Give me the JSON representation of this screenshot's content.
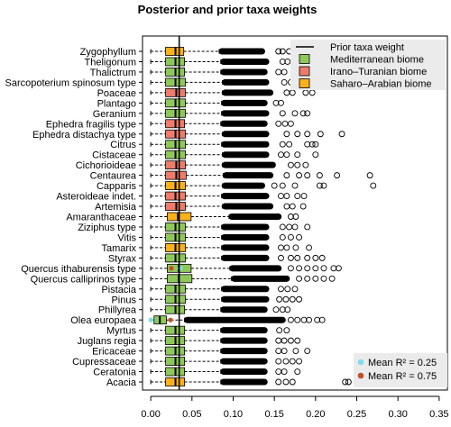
{
  "chart_data": {
    "type": "boxplot",
    "title": "Posterior and prior taxa weights",
    "xlim": [
      -0.01,
      0.36
    ],
    "xticks": [
      0.0,
      0.05,
      0.1,
      0.15,
      0.2,
      0.25,
      0.3,
      0.35
    ],
    "xtick_labels": [
      "0.00",
      "0.05",
      "0.10",
      "0.15",
      "0.20",
      "0.25",
      "0.30",
      "0.35"
    ],
    "prior_weight": 0.0345,
    "grid": false,
    "legend": {
      "placement": "top-right",
      "entries": [
        {
          "label": "Prior taxa weight",
          "kind": "line",
          "color": "#000000"
        },
        {
          "label": "Mediterranean biome",
          "kind": "box",
          "color": "#8fc85a"
        },
        {
          "label": "Irano–Turanian biome",
          "kind": "box",
          "color": "#ee7c6a"
        },
        {
          "label": "Saharo–Arabian biome",
          "kind": "box",
          "color": "#fbb11a"
        }
      ]
    },
    "mean_legend": {
      "placement": "bottom-right",
      "entries": [
        {
          "label": "Mean R² = 0.25",
          "color": "#80dfe8"
        },
        {
          "label": "Mean R² = 0.75",
          "color": "#c2502a"
        }
      ]
    },
    "colors": {
      "Mediterranean": "#8fc85a",
      "Irano-Turanian": "#ee7c6a",
      "Saharo-Arabian": "#fbb11a"
    },
    "taxa": [
      {
        "name": "Zygophyllum",
        "biome": "Saharo-Arabian",
        "q1": 0.018,
        "median": 0.03,
        "q3": 0.04,
        "wmin": 0.0,
        "wmax": 0.083,
        "out_to": 0.135,
        "far": [
          0.155,
          0.16,
          0.168
        ]
      },
      {
        "name": "Theligonum",
        "biome": "Mediterranean",
        "q1": 0.018,
        "median": 0.03,
        "q3": 0.041,
        "wmin": 0.0,
        "wmax": 0.085,
        "out_to": 0.14,
        "far": [
          0.16,
          0.166,
          0.178
        ]
      },
      {
        "name": "Thalictrum",
        "biome": "Mediterranean",
        "q1": 0.018,
        "median": 0.03,
        "q3": 0.041,
        "wmin": 0.0,
        "wmax": 0.085,
        "out_to": 0.138,
        "far": [
          0.155,
          0.162
        ]
      },
      {
        "name": "Sarcopoterium spinosum type",
        "biome": "Mediterranean",
        "q1": 0.018,
        "median": 0.03,
        "q3": 0.042,
        "wmin": 0.0,
        "wmax": 0.087,
        "out_to": 0.14,
        "far": [
          0.162,
          0.17,
          0.18
        ]
      },
      {
        "name": "Poaceae",
        "biome": "Irano-Turanian",
        "q1": 0.018,
        "median": 0.031,
        "q3": 0.042,
        "wmin": 0.0,
        "wmax": 0.087,
        "out_to": 0.145,
        "far": [
          0.165,
          0.172,
          0.188,
          0.196
        ]
      },
      {
        "name": "Plantago",
        "biome": "Mediterranean",
        "q1": 0.018,
        "median": 0.03,
        "q3": 0.042,
        "wmin": 0.0,
        "wmax": 0.086,
        "out_to": 0.138,
        "far": [
          0.152,
          0.158
        ]
      },
      {
        "name": "Geranium",
        "biome": "Mediterranean",
        "q1": 0.018,
        "median": 0.03,
        "q3": 0.042,
        "wmin": 0.0,
        "wmax": 0.086,
        "out_to": 0.14,
        "far": [
          0.16,
          0.175,
          0.185,
          0.19
        ]
      },
      {
        "name": "Ephedra fragilis type",
        "biome": "Irano-Turanian",
        "q1": 0.018,
        "median": 0.03,
        "q3": 0.041,
        "wmin": 0.0,
        "wmax": 0.085,
        "out_to": 0.138,
        "far": [
          0.155,
          0.163,
          0.17
        ]
      },
      {
        "name": "Ephedra distachya type",
        "biome": "Irano-Turanian",
        "q1": 0.018,
        "median": 0.03,
        "q3": 0.042,
        "wmin": 0.0,
        "wmax": 0.087,
        "out_to": 0.14,
        "far": [
          0.165,
          0.178,
          0.19,
          0.206,
          0.232
        ]
      },
      {
        "name": "Citrus",
        "biome": "Mediterranean",
        "q1": 0.018,
        "median": 0.03,
        "q3": 0.042,
        "wmin": 0.0,
        "wmax": 0.086,
        "out_to": 0.14,
        "far": [
          0.16,
          0.168,
          0.19,
          0.196,
          0.2
        ]
      },
      {
        "name": "Cistaceae",
        "biome": "Mediterranean",
        "q1": 0.018,
        "median": 0.03,
        "q3": 0.042,
        "wmin": 0.0,
        "wmax": 0.087,
        "out_to": 0.14,
        "far": [
          0.158,
          0.165,
          0.178,
          0.2
        ]
      },
      {
        "name": "Cichorioideae",
        "biome": "Irano-Turanian",
        "q1": 0.018,
        "median": 0.031,
        "q3": 0.042,
        "wmin": 0.0,
        "wmax": 0.087,
        "out_to": 0.148,
        "far": [
          0.17,
          0.178,
          0.188
        ]
      },
      {
        "name": "Centaurea",
        "biome": "Irano-Turanian",
        "q1": 0.018,
        "median": 0.031,
        "q3": 0.043,
        "wmin": 0.0,
        "wmax": 0.088,
        "out_to": 0.145,
        "far": [
          0.165,
          0.18,
          0.19,
          0.205,
          0.226,
          0.266
        ]
      },
      {
        "name": "Capparis",
        "biome": "Saharo-Arabian",
        "q1": 0.018,
        "median": 0.03,
        "q3": 0.042,
        "wmin": 0.0,
        "wmax": 0.087,
        "out_to": 0.135,
        "far": [
          0.15,
          0.16,
          0.175,
          0.205,
          0.21,
          0.27
        ]
      },
      {
        "name": "Asteroideae indet.",
        "biome": "Irano-Turanian",
        "q1": 0.018,
        "median": 0.03,
        "q3": 0.042,
        "wmin": 0.0,
        "wmax": 0.086,
        "out_to": 0.14,
        "far": [
          0.158,
          0.165,
          0.178,
          0.186
        ]
      },
      {
        "name": "Artemisia",
        "biome": "Irano-Turanian",
        "q1": 0.018,
        "median": 0.031,
        "q3": 0.042,
        "wmin": 0.0,
        "wmax": 0.087,
        "out_to": 0.145,
        "far": [
          0.165,
          0.172,
          0.185
        ]
      },
      {
        "name": "Amaranthaceae",
        "biome": "Saharo-Arabian",
        "q1": 0.02,
        "median": 0.033,
        "q3": 0.049,
        "wmin": 0.0,
        "wmax": 0.095,
        "out_to": 0.155,
        "far": [
          0.17,
          0.176
        ]
      },
      {
        "name": "Ziziphus type",
        "biome": "Mediterranean",
        "q1": 0.018,
        "median": 0.03,
        "q3": 0.042,
        "wmin": 0.0,
        "wmax": 0.086,
        "out_to": 0.14,
        "far": [
          0.16,
          0.168,
          0.175,
          0.19
        ]
      },
      {
        "name": "Vitis",
        "biome": "Mediterranean",
        "q1": 0.018,
        "median": 0.03,
        "q3": 0.042,
        "wmin": 0.0,
        "wmax": 0.086,
        "out_to": 0.14,
        "far": [
          0.16,
          0.17,
          0.18
        ]
      },
      {
        "name": "Tamarix",
        "biome": "Saharo-Arabian",
        "q1": 0.018,
        "median": 0.03,
        "q3": 0.042,
        "wmin": 0.0,
        "wmax": 0.086,
        "out_to": 0.14,
        "far": [
          0.158,
          0.165,
          0.176,
          0.192
        ]
      },
      {
        "name": "Styrax",
        "biome": "Mediterranean",
        "q1": 0.018,
        "median": 0.03,
        "q3": 0.042,
        "wmin": 0.0,
        "wmax": 0.086,
        "out_to": 0.14,
        "far": [
          0.158,
          0.17,
          0.178,
          0.19,
          0.2,
          0.208
        ]
      },
      {
        "name": "Quercus ithaburensis type",
        "biome": "Mediterranean",
        "q1": 0.02,
        "median": 0.034,
        "q3": 0.049,
        "wmin": 0.0,
        "wmax": 0.096,
        "out_to": 0.155,
        "far": [
          0.17,
          0.18,
          0.19,
          0.2,
          0.21,
          0.222,
          0.228
        ],
        "mean_025": 0.036,
        "mean_075": 0.025
      },
      {
        "name": "Quercus calliprinos type",
        "biome": "Mediterranean",
        "q1": 0.02,
        "median": 0.034,
        "q3": 0.05,
        "wmin": 0.0,
        "wmax": 0.098,
        "out_to": 0.165,
        "far": [
          0.18,
          0.19,
          0.2,
          0.21,
          0.22
        ]
      },
      {
        "name": "Pistacia",
        "biome": "Mediterranean",
        "q1": 0.018,
        "median": 0.03,
        "q3": 0.042,
        "wmin": 0.0,
        "wmax": 0.086,
        "out_to": 0.14,
        "far": [
          0.158,
          0.166,
          0.175
        ]
      },
      {
        "name": "Pinus",
        "biome": "Mediterranean",
        "q1": 0.018,
        "median": 0.03,
        "q3": 0.042,
        "wmin": 0.0,
        "wmax": 0.086,
        "out_to": 0.14,
        "far": [
          0.156,
          0.164,
          0.172,
          0.18
        ]
      },
      {
        "name": "Phillyrea",
        "biome": "Mediterranean",
        "q1": 0.018,
        "median": 0.03,
        "q3": 0.041,
        "wmin": 0.0,
        "wmax": 0.085,
        "out_to": 0.138,
        "far": [
          0.152,
          0.16,
          0.166
        ]
      },
      {
        "name": "Olea europaea",
        "biome": "Mediterranean",
        "q1": 0.004,
        "median": 0.011,
        "q3": 0.019,
        "wmin": 0.0,
        "wmax": 0.041,
        "out_to": 0.16,
        "far": [
          0.17,
          0.178,
          0.186,
          0.192,
          0.202,
          0.208
        ],
        "mean_025": 0.0,
        "mean_075": 0.024
      },
      {
        "name": "Myrtus",
        "biome": "Mediterranean",
        "q1": 0.018,
        "median": 0.03,
        "q3": 0.041,
        "wmin": 0.0,
        "wmax": 0.085,
        "out_to": 0.138,
        "far": [
          0.156,
          0.165
        ]
      },
      {
        "name": "Juglans regia",
        "biome": "Mediterranean",
        "q1": 0.018,
        "median": 0.03,
        "q3": 0.041,
        "wmin": 0.0,
        "wmax": 0.085,
        "out_to": 0.138,
        "far": [
          0.155,
          0.162,
          0.17,
          0.178
        ]
      },
      {
        "name": "Ericaceae",
        "biome": "Mediterranean",
        "q1": 0.018,
        "median": 0.03,
        "q3": 0.041,
        "wmin": 0.0,
        "wmax": 0.085,
        "out_to": 0.138,
        "far": [
          0.155,
          0.162,
          0.176,
          0.19
        ]
      },
      {
        "name": "Cupressaceae",
        "biome": "Mediterranean",
        "q1": 0.018,
        "median": 0.03,
        "q3": 0.041,
        "wmin": 0.0,
        "wmax": 0.085,
        "out_to": 0.138,
        "far": [
          0.155,
          0.164,
          0.172,
          0.18
        ]
      },
      {
        "name": "Ceratonia",
        "biome": "Mediterranean",
        "q1": 0.018,
        "median": 0.03,
        "q3": 0.041,
        "wmin": 0.0,
        "wmax": 0.085,
        "out_to": 0.138,
        "far": [
          0.155,
          0.162,
          0.178
        ]
      },
      {
        "name": "Acacia",
        "biome": "Saharo-Arabian",
        "q1": 0.018,
        "median": 0.03,
        "q3": 0.041,
        "wmin": 0.0,
        "wmax": 0.085,
        "out_to": 0.138,
        "far": [
          0.155,
          0.164,
          0.172,
          0.236,
          0.24
        ]
      }
    ]
  }
}
